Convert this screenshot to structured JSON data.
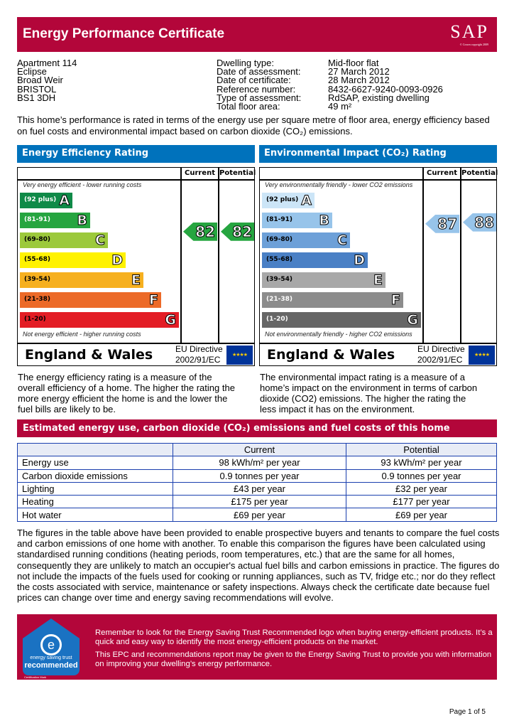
{
  "header": {
    "title": "Energy Performance Certificate",
    "logo": "SAP",
    "logo_note": "© Crown copyright 2009"
  },
  "address": [
    "Apartment 114",
    "Eclipse",
    "Broad Weir",
    "BRISTOL",
    "BS1 3DH"
  ],
  "details": [
    {
      "label": "Dwelling type:",
      "value": "Mid-floor flat"
    },
    {
      "label": "Date of assessment:",
      "value": "27 March 2012"
    },
    {
      "label": "Date of certificate:",
      "value": "28 March 2012"
    },
    {
      "label": "Reference number:",
      "value": "8432-6627-9240-0093-0926"
    },
    {
      "label": "Type of assessment:",
      "value": "RdSAP, existing dwelling"
    },
    {
      "label": "Total floor area:",
      "value": "49 m²"
    }
  ],
  "intro": "This home’s performance is rated in terms of the energy use per square metre of floor area, energy efficiency based on fuel costs and environmental impact based on carbon dioxide (CO₂) emissions.",
  "ratings": [
    {
      "title": "Energy Efficiency Rating",
      "col_current": "Current",
      "col_potential": "Potential",
      "top_note": "Very energy efficient - lower running costs",
      "bottom_note": "Not energy efficient - higher running costs",
      "region": "England & Wales",
      "directive": "EU Directive",
      "directive_no": "2002/91/EC",
      "current": 82,
      "potential": 82,
      "current_color": "#26a540",
      "potential_color": "#26a540",
      "bands": [
        {
          "range": "(92 plus)",
          "letter": "A",
          "color": "#0f8a48",
          "text": "#fff"
        },
        {
          "range": "(81-91)",
          "letter": "B",
          "color": "#26a540",
          "text": "#fff"
        },
        {
          "range": "(69-80)",
          "letter": "C",
          "color": "#9cc93c",
          "text": "#000"
        },
        {
          "range": "(55-68)",
          "letter": "D",
          "color": "#fff200",
          "text": "#000"
        },
        {
          "range": "(39-54)",
          "letter": "E",
          "color": "#f6b01f",
          "text": "#000"
        },
        {
          "range": "(21-38)",
          "letter": "F",
          "color": "#ec6a28",
          "text": "#000"
        },
        {
          "range": "(1-20)",
          "letter": "G",
          "color": "#e31d25",
          "text": "#000"
        }
      ],
      "description": "The energy efficiency rating is a measure of the overall efficiency of a home. The higher the rating the more energy efficient the home is and the lower the fuel bills are likely to be."
    },
    {
      "title": "Environmental Impact (CO₂) Rating",
      "col_current": "Current",
      "col_potential": "Potential",
      "top_note": "Very environmentally friendly - lower CO2 emissions",
      "bottom_note": "Not environmentally friendly - higher CO2 emissions",
      "region": "England & Wales",
      "directive": "EU Directive",
      "directive_no": "2002/91/EC",
      "current": 87,
      "potential": 88,
      "current_color": "#97c4ea",
      "potential_color": "#97c4ea",
      "bands": [
        {
          "range": "(92 plus)",
          "letter": "A",
          "color": "#cce5f7",
          "text": "#000"
        },
        {
          "range": "(81-91)",
          "letter": "B",
          "color": "#97c4ea",
          "text": "#000"
        },
        {
          "range": "(69-80)",
          "letter": "C",
          "color": "#6da0d8",
          "text": "#000"
        },
        {
          "range": "(55-68)",
          "letter": "D",
          "color": "#4a80c5",
          "text": "#000"
        },
        {
          "range": "(39-54)",
          "letter": "E",
          "color": "#a8a8a8",
          "text": "#000"
        },
        {
          "range": "(21-38)",
          "letter": "F",
          "color": "#8c8c8c",
          "text": "#fff"
        },
        {
          "range": "(1-20)",
          "letter": "G",
          "color": "#666666",
          "text": "#fff"
        }
      ],
      "description": "The environmental impact rating is a measure of a home’s impact on the environment in terms of carbon dioxide (CO2) emissions. The higher the rating the less impact it has on the environment."
    }
  ],
  "estimate": {
    "title": "Estimated energy use, carbon dioxide (CO₂) emissions and fuel costs of this home",
    "headers": [
      "",
      "Current",
      "Potential"
    ],
    "rows": [
      [
        "Energy use",
        "98 kWh/m² per year",
        "93 kWh/m² per year"
      ],
      [
        "Carbon dioxide emissions",
        "0.9 tonnes per year",
        "0.9 tonnes per year"
      ],
      [
        "Lighting",
        "£43 per year",
        "£32 per year"
      ],
      [
        "Heating",
        "£175 per year",
        "£177 per year"
      ],
      [
        "Hot water",
        "£69 per year",
        "£69 per year"
      ]
    ]
  },
  "paragraph": "The figures in the table above have been provided to enable prospective buyers and tenants to compare the fuel costs and carbon emissions of one home with another. To enable this comparison the figures have been calculated using standardised running conditions (heating periods, room temperatures, etc.) that are the same for all homes, consequently they are unlikely to match an occupier's actual fuel bills and carbon emissions in practice. The figures do not include the impacts of the fuels used for cooking or running appliances, such as TV, fridge etc.; nor do they reflect the costs associated with service, maintenance or safety inspections. Always check the certificate date because fuel prices can change over time and energy saving recommendations will evolve.",
  "trust": {
    "logo_text": "energy saving trust",
    "logo_label": "recommended",
    "logo_mark": "Certification Mark",
    "p1": "Remember to look for the Energy Saving Trust Recommended logo when buying energy-efficient products. It’s a quick and easy way to identify the most energy-efficient products on the market.",
    "p2": "This EPC and recommendations report may be given to the Energy Saving Trust to provide you with information on improving your dwelling’s energy performance."
  },
  "page": "Page 1 of 5"
}
